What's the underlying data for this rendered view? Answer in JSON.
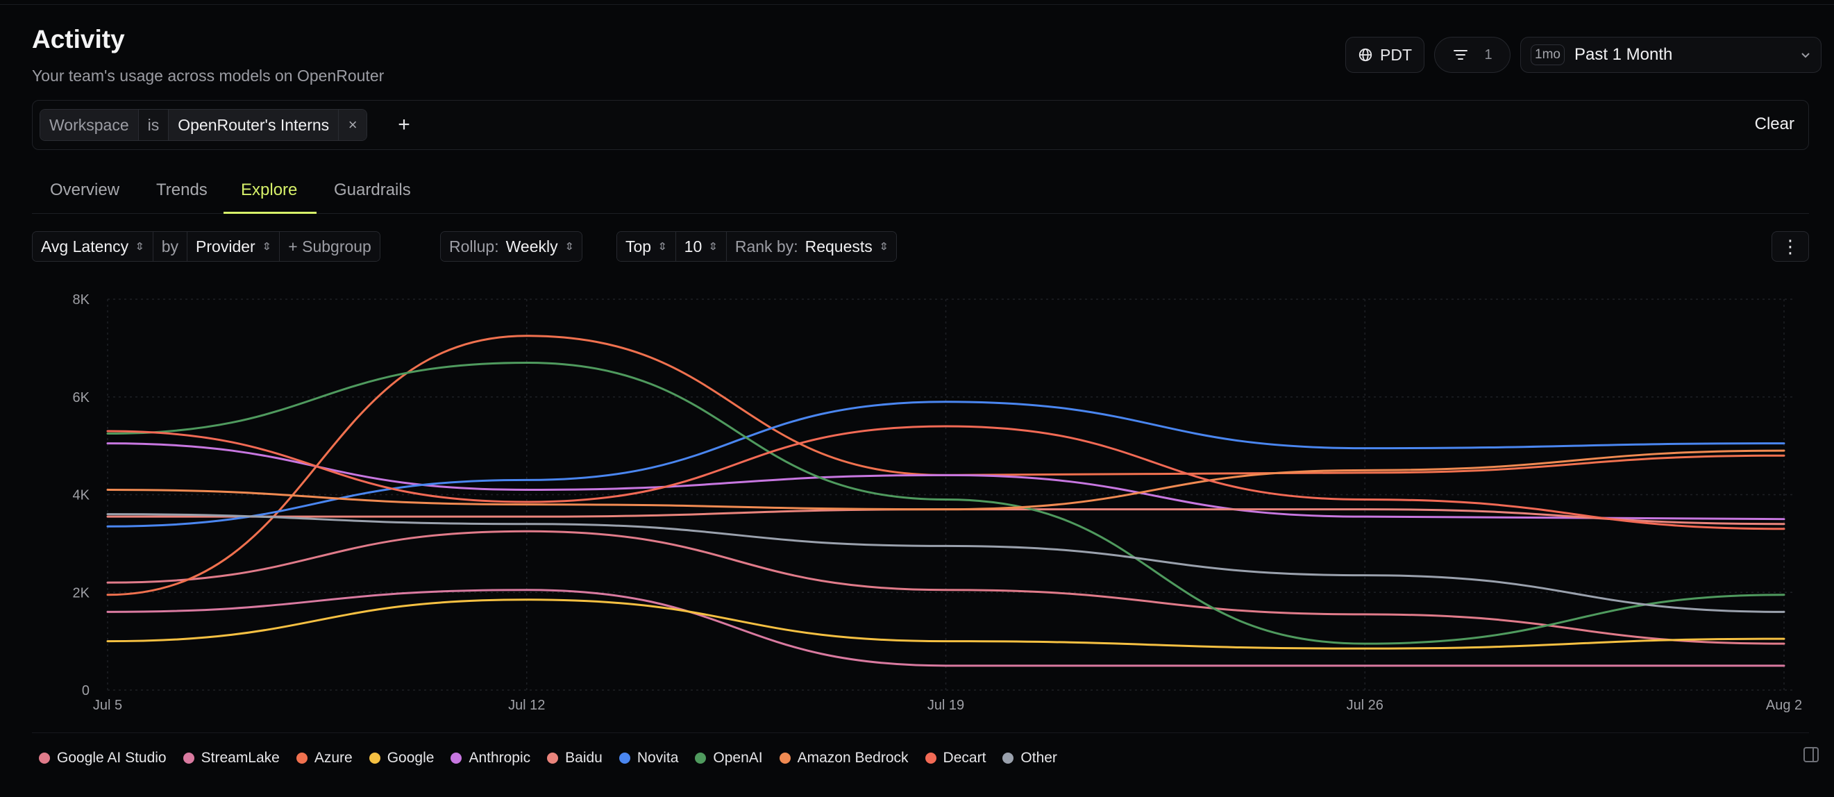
{
  "header": {
    "title": "Activity",
    "subtitle": "Your team's usage across models on OpenRouter",
    "timezone": "PDT",
    "filter_count": "1",
    "range_badge": "1mo",
    "range_label": "Past 1 Month"
  },
  "filter": {
    "field": "Workspace",
    "operator": "is",
    "value": "OpenRouter's Interns",
    "remove": "×",
    "add": "+",
    "clear": "Clear"
  },
  "tabs": [
    {
      "label": "Overview",
      "active": false
    },
    {
      "label": "Trends",
      "active": false
    },
    {
      "label": "Explore",
      "active": true
    },
    {
      "label": "Guardrails",
      "active": false
    }
  ],
  "toolbar": {
    "metric": "Avg Latency",
    "by": "by",
    "group_by": "Provider",
    "subgroup": "+ Subgroup",
    "rollup_label": "Rollup:",
    "rollup_value": "Weekly",
    "top_label": "Top",
    "top_value": "10",
    "rank_label": "Rank by:",
    "rank_value": "Requests",
    "more": "⋮"
  },
  "icons": {
    "timezone": "globe-icon",
    "filter": "filter-lines-icon",
    "range_dropdown": "chevron-down-icon",
    "stepper": "chevron-updown-icon",
    "more": "more-vertical-icon",
    "panel": "sidebar-panel-icon"
  },
  "chart_data": {
    "type": "line",
    "x": [
      "Jul 5",
      "Jul 12",
      "Jul 19",
      "Jul 26",
      "Aug 2"
    ],
    "ylim": [
      0,
      8000
    ],
    "yticks": [
      0,
      2000,
      4000,
      6000,
      8000
    ],
    "ytick_labels": [
      "0",
      "2K",
      "4K",
      "6K",
      "8K"
    ],
    "xlabel": "",
    "ylabel": "",
    "grid": true,
    "legend_position": "bottom",
    "series": [
      {
        "name": "Google AI Studio",
        "color": "#e07b8a",
        "values": [
          2200,
          3250,
          2050,
          1550,
          950
        ]
      },
      {
        "name": "StreamLake",
        "color": "#d97aa0",
        "values": [
          1600,
          2050,
          500,
          500,
          500
        ]
      },
      {
        "name": "Azure",
        "color": "#f0714f",
        "values": [
          1950,
          7250,
          4400,
          4450,
          4800
        ]
      },
      {
        "name": "Google",
        "color": "#f5c042",
        "values": [
          1000,
          1850,
          1000,
          850,
          1050
        ]
      },
      {
        "name": "Anthropic",
        "color": "#c777e0",
        "values": [
          5050,
          4100,
          4400,
          3550,
          3500
        ]
      },
      {
        "name": "Baidu",
        "color": "#e9847c",
        "values": [
          3550,
          3550,
          3700,
          3700,
          3400
        ]
      },
      {
        "name": "Novita",
        "color": "#4a86f0",
        "values": [
          3350,
          4300,
          5900,
          4950,
          5050
        ]
      },
      {
        "name": "OpenAI",
        "color": "#4f9a5e",
        "values": [
          5250,
          6700,
          3900,
          950,
          1950
        ]
      },
      {
        "name": "Amazon Bedrock",
        "color": "#f08a52",
        "values": [
          4100,
          3800,
          3700,
          4500,
          4900
        ]
      },
      {
        "name": "Decart",
        "color": "#f26a55",
        "values": [
          5300,
          3850,
          5400,
          3900,
          3300
        ]
      },
      {
        "name": "Other",
        "color": "#9aa1ad",
        "values": [
          3600,
          3400,
          2950,
          2350,
          1600
        ]
      }
    ]
  }
}
